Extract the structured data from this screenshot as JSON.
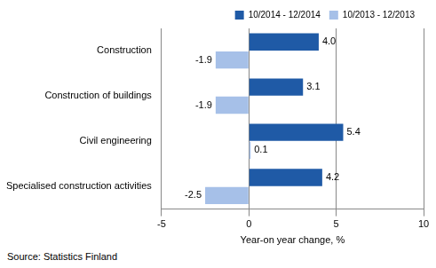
{
  "chart_data": {
    "type": "bar",
    "orientation": "horizontal",
    "categories": [
      "Construction",
      "Construction of buildings",
      "Civil engineering",
      "Specialised construction activities"
    ],
    "series": [
      {
        "name": "10/2014 - 12/2014",
        "color": "#1f5aa6",
        "values": [
          4.0,
          3.1,
          5.4,
          4.2
        ],
        "value_labels": [
          "4.0",
          "3.1",
          "5.4",
          "4.2"
        ]
      },
      {
        "name": "10/2013 - 12/2013",
        "color": "#a6c0e8",
        "values": [
          -1.9,
          -1.9,
          0.1,
          -2.5
        ],
        "value_labels": [
          "-1.9",
          "-1.9",
          "0.1",
          "-2.5"
        ]
      }
    ],
    "xlim": [
      -5,
      10
    ],
    "xticks": [
      -5,
      0,
      5,
      10
    ],
    "x_label": "Year-on year change, %",
    "annotations": [
      "Source: Statistics Finland"
    ],
    "legend": "upper right",
    "grid": true,
    "data_labels": true
  }
}
